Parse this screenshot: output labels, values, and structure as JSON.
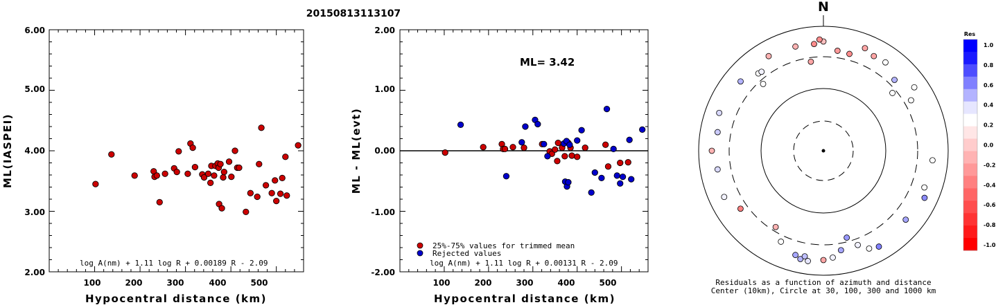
{
  "title": "20150813113107",
  "chart_data": [
    {
      "type": "scatter",
      "xlabel": "Hypocentral distance (km)",
      "ylabel": "ML(IASPEI)",
      "xlim": [
        0,
        560
      ],
      "ylim": [
        2.0,
        6.0
      ],
      "x_ticks": [
        "100",
        "200",
        "300",
        "400",
        "500"
      ],
      "y_ticks": [
        "2.00",
        "3.00",
        "4.00",
        "5.00",
        "6.00"
      ],
      "formula": "log A(nm) + 1.11 log R + 0.00189 R - 2.09",
      "points": [
        [
          102,
          3.45
        ],
        [
          137,
          3.94
        ],
        [
          188,
          3.59
        ],
        [
          230,
          3.66
        ],
        [
          232,
          3.57
        ],
        [
          237,
          3.59
        ],
        [
          243,
          3.15
        ],
        [
          255,
          3.62
        ],
        [
          275,
          3.71
        ],
        [
          281,
          3.65
        ],
        [
          285,
          3.99
        ],
        [
          305,
          3.62
        ],
        [
          311,
          4.12
        ],
        [
          316,
          4.05
        ],
        [
          321,
          3.73
        ],
        [
          337,
          3.61
        ],
        [
          341,
          3.56
        ],
        [
          350,
          3.62
        ],
        [
          355,
          3.47
        ],
        [
          357,
          3.75
        ],
        [
          363,
          3.59
        ],
        [
          366,
          3.75
        ],
        [
          371,
          3.79
        ],
        [
          373,
          3.72
        ],
        [
          374,
          3.12
        ],
        [
          377,
          3.78
        ],
        [
          380,
          3.05
        ],
        [
          383,
          3.56
        ],
        [
          385,
          3.65
        ],
        [
          396,
          3.82
        ],
        [
          401,
          3.57
        ],
        [
          409,
          4.0
        ],
        [
          414,
          3.72
        ],
        [
          418,
          3.72
        ],
        [
          433,
          2.99
        ],
        [
          443,
          3.3
        ],
        [
          458,
          3.24
        ],
        [
          462,
          3.78
        ],
        [
          467,
          4.38
        ],
        [
          477,
          3.43
        ],
        [
          490,
          3.3
        ],
        [
          497,
          3.51
        ],
        [
          500,
          3.17
        ],
        [
          509,
          3.29
        ],
        [
          513,
          3.55
        ],
        [
          520,
          3.9
        ],
        [
          523,
          3.26
        ],
        [
          548,
          4.09
        ]
      ],
      "marker_color": "#cc0000"
    },
    {
      "type": "scatter",
      "xlabel": "Hypocentral distance (km)",
      "ylabel": "ML - ML(evt)",
      "xlim": [
        0,
        560
      ],
      "ylim": [
        -2.0,
        2.0
      ],
      "x_ticks": [
        "100",
        "200",
        "300",
        "400",
        "500"
      ],
      "y_ticks": [
        "-2.00",
        "-1.00",
        "0.00",
        "1.00",
        "2.00"
      ],
      "annotation": "ML= 3.42",
      "formula": "log A(nm) + 1.11 log R + 0.00131 R - 2.09",
      "legend": [
        "25%-75% values for trimmed mean",
        "Rejected values"
      ],
      "series": [
        {
          "name": "25%-75% values for trimmed mean",
          "color": "#cc0000",
          "points": [
            [
              102,
              -0.03
            ],
            [
              188,
              0.06
            ],
            [
              230,
              0.11
            ],
            [
              233,
              0.03
            ],
            [
              237,
              0.03
            ],
            [
              255,
              0.06
            ],
            [
              280,
              0.05
            ],
            [
              321,
              0.11
            ],
            [
              338,
              -0.01
            ],
            [
              343,
              -0.05
            ],
            [
              350,
              0.02
            ],
            [
              355,
              -0.17
            ],
            [
              357,
              0.13
            ],
            [
              366,
              0.05
            ],
            [
              372,
              -0.09
            ],
            [
              380,
              0.13
            ],
            [
              385,
              0.05
            ],
            [
              388,
              -0.08
            ],
            [
              400,
              -0.1
            ],
            [
              418,
              0.05
            ],
            [
              464,
              0.1
            ],
            [
              470,
              -0.26
            ],
            [
              497,
              -0.2
            ],
            [
              515,
              -0.19
            ]
          ]
        },
        {
          "name": "Rejected values",
          "color": "#0000cc",
          "points": [
            [
              137,
              0.43
            ],
            [
              240,
              -0.42
            ],
            [
              275,
              0.14
            ],
            [
              283,
              0.4
            ],
            [
              305,
              0.51
            ],
            [
              311,
              0.44
            ],
            [
              325,
              0.11
            ],
            [
              333,
              -0.09
            ],
            [
              370,
              0.12
            ],
            [
              373,
              -0.51
            ],
            [
              376,
              0.16
            ],
            [
              377,
              -0.59
            ],
            [
              380,
              -0.52
            ],
            [
              383,
              0.1
            ],
            [
              400,
              0.17
            ],
            [
              410,
              0.34
            ],
            [
              432,
              -0.69
            ],
            [
              440,
              -0.36
            ],
            [
              455,
              -0.45
            ],
            [
              467,
              0.69
            ],
            [
              482,
              0.03
            ],
            [
              490,
              -0.41
            ],
            [
              497,
              -0.54
            ],
            [
              503,
              -0.43
            ],
            [
              518,
              0.18
            ],
            [
              522,
              -0.47
            ],
            [
              547,
              0.35
            ]
          ]
        }
      ]
    },
    {
      "type": "scatter",
      "title": "N",
      "caption": "Residuals as a function of azimuth and distance",
      "caption2": "Center (10km), Circle at 30, 100, 300 and 1000 km",
      "colorbar_title": "Res",
      "colorbar_ticks": [
        "1.0",
        "0.8",
        "0.6",
        "0.4",
        "0.2",
        "0.0",
        "-0.2",
        "-0.4",
        "-0.6",
        "-0.8",
        "-1.0"
      ],
      "colorbar_colors": [
        "#0000ff",
        "#1a1aff",
        "#4d4dff",
        "#8080ff",
        "#b3b3ff",
        "#e6e6ff",
        "#ffffff",
        "#ffe6e6",
        "#ffcccc",
        "#ffb3b3",
        "#ff9999",
        "#ff8080",
        "#ff6666",
        "#ff4d4d",
        "#ff3333",
        "#ff1a1a",
        "#ff0000"
      ],
      "points_azimuth_deg_residual": [
        [
          0,
          0.0,
          -0.25
        ],
        [
          8,
          0.0,
          -0.4
        ],
        [
          -8,
          0.0,
          -0.35
        ],
        [
          15,
          0.0,
          -0.45
        ],
        [
          -15,
          0.0,
          -0.3
        ],
        [
          22,
          0.0,
          -0.35
        ],
        [
          28,
          0.0,
          -0.35
        ],
        [
          -2,
          0.0,
          -0.45
        ],
        [
          -5,
          0.0,
          -0.45
        ],
        [
          -30,
          0.0,
          -0.3
        ],
        [
          -40,
          0.0,
          0.0
        ],
        [
          -42,
          0.0,
          0.0
        ],
        [
          -38,
          0.0,
          0.05
        ],
        [
          -50,
          0.0,
          0.3
        ],
        [
          -70,
          0.0,
          0.15
        ],
        [
          -80,
          0.0,
          0.2
        ],
        [
          -90,
          0.0,
          -0.3
        ],
        [
          -100,
          0.0,
          0.15
        ],
        [
          -115,
          0.0,
          0.05
        ],
        [
          -125,
          0.0,
          -0.5
        ],
        [
          -148,
          0.0,
          -0.3
        ],
        [
          -155,
          0.0,
          0.0
        ],
        [
          -165,
          0.0,
          0.35
        ],
        [
          -168,
          0.0,
          0.3
        ],
        [
          -170,
          0.0,
          0.25
        ],
        [
          -172,
          0.0,
          0.1
        ],
        [
          175,
          0.0,
          0.05
        ],
        [
          180,
          0.0,
          -0.35
        ],
        [
          170,
          0.0,
          0.35
        ],
        [
          165,
          0.0,
          0.4
        ],
        [
          160,
          0.0,
          0.05
        ],
        [
          155,
          0.0,
          0.0
        ],
        [
          150,
          0.0,
          0.5
        ],
        [
          130,
          0.0,
          0.35
        ],
        [
          115,
          0.0,
          0.45
        ],
        [
          110,
          0.0,
          0.0
        ],
        [
          95,
          0.0,
          0.0
        ],
        [
          60,
          0.0,
          0.0
        ],
        [
          50,
          0.0,
          0.0
        ],
        [
          45,
          0.0,
          0.3
        ],
        [
          35,
          0.0,
          0.0
        ],
        [
          55,
          0.0,
          0.0
        ]
      ]
    }
  ]
}
